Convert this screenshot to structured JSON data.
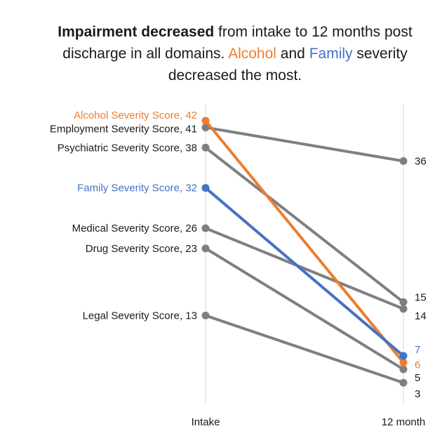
{
  "title": {
    "part1_bold": "Impairment decreased",
    "part2": " from intake to 12 months post discharge in all domains. ",
    "alcohol": "Alcohol",
    "and": " and ",
    "family": "Family",
    "part3": " severity decreased the most."
  },
  "colors": {
    "gray": "#7f7f7f",
    "orange": "#ed7d31",
    "blue": "#4472c4",
    "text": "#1a1a1a",
    "gridline": "#d9d9d9"
  },
  "chart_data": {
    "type": "line",
    "title": "Impairment decreased from intake to 12 months post discharge in all domains. Alcohol and Family severity decreased the most.",
    "categories": [
      "Intake",
      "12 month"
    ],
    "ylim": [
      0,
      45
    ],
    "grid": false,
    "series": [
      {
        "name": "Alcohol Severity Score",
        "values": [
          42,
          6
        ],
        "color_key": "orange",
        "start_label": "Alcohol Severity Score, 42",
        "end_label": "6"
      },
      {
        "name": "Employment Severity Score",
        "values": [
          41,
          36
        ],
        "color_key": "gray",
        "start_label": "Employment Severity Score, 41",
        "end_label": "36"
      },
      {
        "name": "Psychiatric Severity Score",
        "values": [
          38,
          15
        ],
        "color_key": "gray",
        "start_label": "Psychiatric Severity Score, 38",
        "end_label": "15"
      },
      {
        "name": "Family Severity Score",
        "values": [
          32,
          7
        ],
        "color_key": "blue",
        "start_label": "Family Severity Score, 32",
        "end_label": "7"
      },
      {
        "name": "Medical Severity Score",
        "values": [
          26,
          14
        ],
        "color_key": "gray",
        "start_label": "Medical Severity Score, 26",
        "end_label": "14"
      },
      {
        "name": "Drug Severity Score",
        "values": [
          23,
          5
        ],
        "color_key": "gray",
        "start_label": "Drug Severity Score, 23",
        "end_label": "5"
      },
      {
        "name": "Legal Severity Score",
        "values": [
          13,
          3
        ],
        "color_key": "gray",
        "start_label": "Legal Severity Score, 13",
        "end_label": "3"
      }
    ]
  }
}
